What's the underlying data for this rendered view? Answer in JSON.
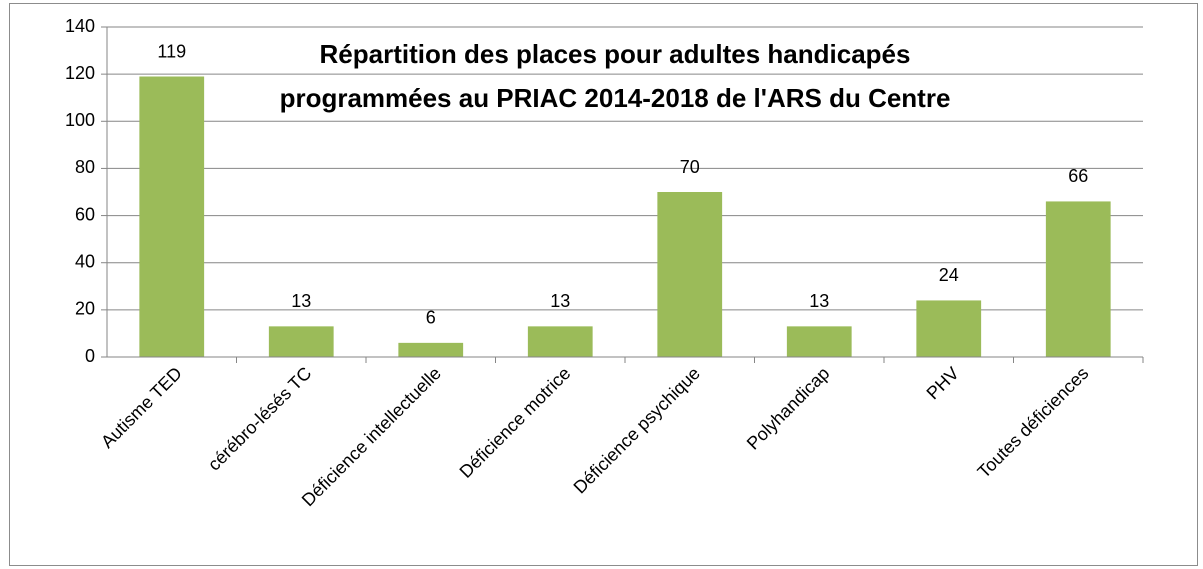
{
  "chart_data": {
    "type": "bar",
    "title": [
      "Répartition des places pour adultes handicapés",
      "programmées  au PRIAC 2014-2018 de l'ARS du Centre"
    ],
    "categories": [
      "Autisme TED",
      "cérébro-lésés TC",
      "Déficience intellectuelle",
      "Déficience motrice",
      "Déficience psychique",
      "Polyhandicap",
      "PHV",
      "Toutes déficiences"
    ],
    "values": [
      119,
      13,
      6,
      13,
      70,
      13,
      24,
      66
    ],
    "color": "#9bbb59",
    "ylim": [
      0,
      140
    ],
    "yticks": [
      0,
      20,
      40,
      60,
      80,
      100,
      120,
      140
    ],
    "grid": true
  }
}
